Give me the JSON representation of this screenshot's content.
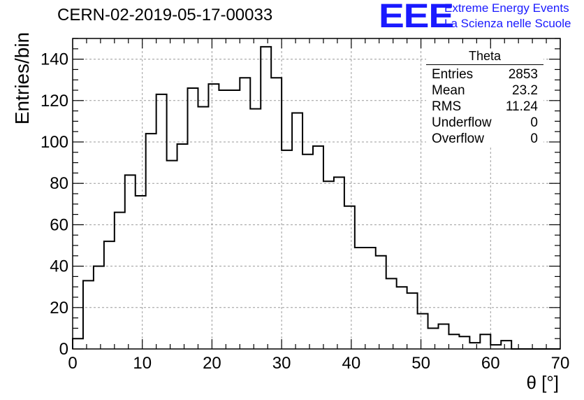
{
  "title": "CERN-02-2019-05-17-00033",
  "logo": {
    "text": "EEE",
    "line1": "Extreme Energy Events",
    "line2": "La Scienza nelle Scuole",
    "color": "#1a1aff"
  },
  "stats_box": {
    "name": "Theta",
    "rows": [
      {
        "label": "Entries",
        "value": "2853"
      },
      {
        "label": "Mean",
        "value": "23.2"
      },
      {
        "label": "RMS",
        "value": "11.24"
      },
      {
        "label": "Underflow",
        "value": "0"
      },
      {
        "label": "Overflow",
        "value": "0"
      }
    ]
  },
  "chart_data": {
    "type": "histogram",
    "title": "CERN-02-2019-05-17-00033",
    "xlabel": "θ [°]",
    "ylabel": "Entries/bin",
    "xlim": [
      0,
      70
    ],
    "ylim": [
      0,
      150
    ],
    "bin_width": 1.5,
    "bin_start": 0,
    "grid": true,
    "x_ticks": [
      0,
      10,
      20,
      30,
      40,
      50,
      60,
      70
    ],
    "y_ticks": [
      0,
      20,
      40,
      60,
      80,
      100,
      120,
      140
    ],
    "values": [
      5,
      33,
      40,
      52,
      66,
      84,
      74,
      104,
      123,
      91,
      99,
      126,
      117,
      128,
      125,
      125,
      131,
      116,
      146,
      131,
      96,
      114,
      94,
      98,
      81,
      83,
      69,
      49,
      49,
      45,
      34,
      30,
      27,
      17,
      10,
      12,
      7,
      6,
      3,
      7,
      2,
      4,
      0,
      0,
      0,
      0,
      0
    ]
  }
}
